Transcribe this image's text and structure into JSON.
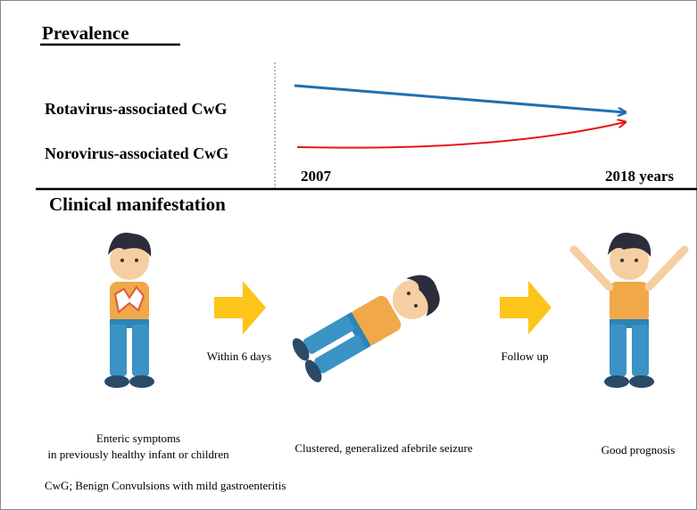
{
  "prevalence": {
    "title": "Prevalence",
    "rows": [
      {
        "label": "Rotavirus-associated CwG"
      },
      {
        "label": "Norovirus-associated CwG"
      }
    ],
    "axis": {
      "start": "2007",
      "end": "2018 years"
    }
  },
  "clinical": {
    "title": "Clinical manifestation",
    "stages": [
      {
        "caption": [
          "Enteric symptoms",
          "in previously healthy infant or children"
        ]
      },
      {
        "caption": [
          "Clustered, generalized afebrile seizure"
        ]
      },
      {
        "caption": [
          "Good prognosis"
        ]
      }
    ],
    "transitions": [
      "Within 6 days",
      "Follow up"
    ]
  },
  "footnote": "CwG; Benign Convulsions with mild gastroenteritis"
}
